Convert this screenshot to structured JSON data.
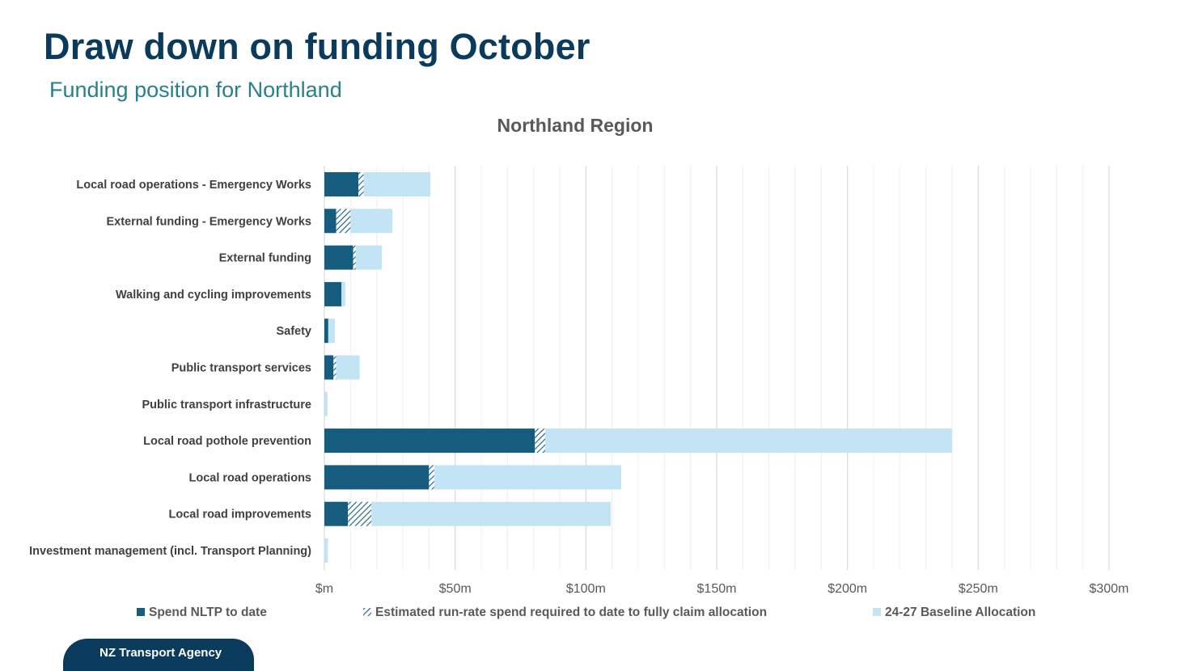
{
  "page": {
    "title": "Draw down on funding October",
    "subtitle": "Funding position for Northland",
    "footer_label": "NZ Transport Agency"
  },
  "colors": {
    "spend": "#155c7e",
    "hatch": "#155c7e",
    "baseline": "#c3e4f4",
    "grid_major": "#d9d9d9",
    "grid_minor": "#efefef",
    "title_text": "#595959",
    "label_text": "#404040"
  },
  "chart_data": {
    "type": "bar",
    "orientation": "horizontal",
    "stacked": true,
    "title": "Northland Region",
    "categories": [
      "Local road operations - Emergency Works",
      "External funding - Emergency Works",
      "External funding",
      "Walking and cycling improvements",
      "Safety",
      "Public transport services",
      "Public transport infrastructure",
      "Local road pothole prevention",
      "Local road operations",
      "Local road improvements",
      "Investment management (incl. Transport Planning)"
    ],
    "series": [
      {
        "name": "Spend NLTP to date",
        "style": "solid-dark",
        "values": [
          13,
          4.5,
          11,
          6.5,
          1.5,
          3.5,
          0,
          80.5,
          40,
          9,
          0
        ]
      },
      {
        "name": "Estimated run-rate spend required to date to fully claim allocation",
        "style": "hatched",
        "values": [
          2,
          5.5,
          1,
          0,
          0,
          1,
          0,
          4,
          2,
          9,
          0
        ]
      },
      {
        "name": "24-27 Baseline Allocation",
        "style": "solid-light",
        "values": [
          25.5,
          16,
          10,
          1.5,
          2.5,
          9,
          1.2,
          155.5,
          71.5,
          91.5,
          1.4
        ]
      }
    ],
    "x_axis": {
      "min": 0,
      "max": 300,
      "major_step": 50,
      "minor_step": 10,
      "tick_labels": [
        "$m",
        "$50m",
        "$100m",
        "$150m",
        "$200m",
        "$250m",
        "$300m"
      ]
    },
    "legend_position": "bottom",
    "legend": [
      "Spend NLTP to date",
      "Estimated run-rate spend required to date to fully claim allocation",
      "24-27 Baseline Allocation"
    ]
  }
}
